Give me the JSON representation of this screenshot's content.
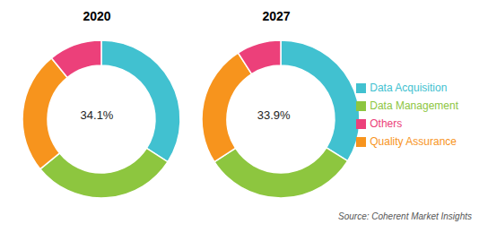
{
  "chart_data": [
    {
      "type": "pie",
      "title": "2020",
      "categories": [
        "Data Acquisition",
        "Data Management",
        "Quality Assurance",
        "Others"
      ],
      "values": [
        34.1,
        30.0,
        25.0,
        10.9
      ],
      "colors": [
        "#41C1D0",
        "#8DC63F",
        "#F7941D",
        "#EC407A"
      ],
      "annotations": [
        "34.1%"
      ]
    },
    {
      "type": "pie",
      "title": "2027",
      "categories": [
        "Data Acquisition",
        "Data Management",
        "Quality Assurance",
        "Others"
      ],
      "values": [
        33.9,
        32.0,
        25.0,
        9.1
      ],
      "colors": [
        "#41C1D0",
        "#8DC63F",
        "#F7941D",
        "#EC407A"
      ],
      "legend": "right",
      "annotations": [
        "33.9%",
        "Source: Coherent Market Insights"
      ]
    }
  ]
}
